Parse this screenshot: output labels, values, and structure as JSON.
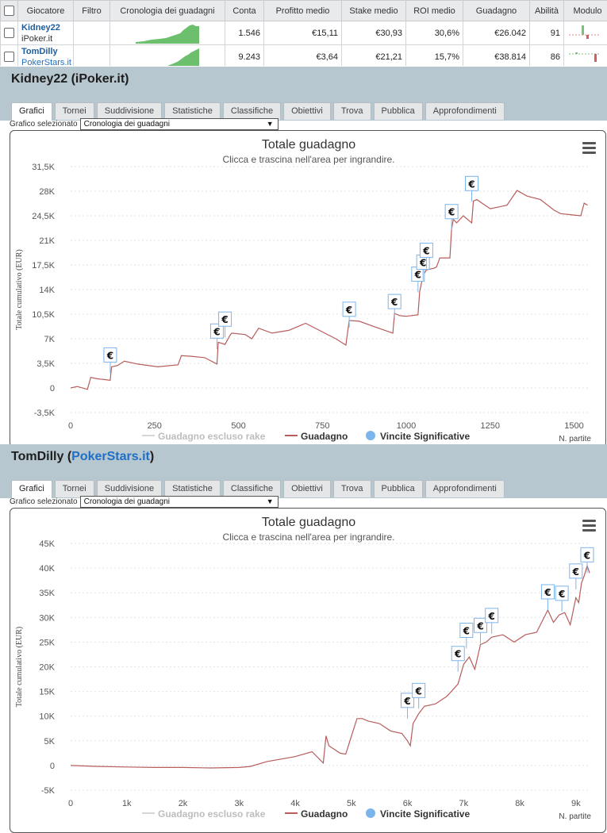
{
  "table": {
    "headers": [
      "",
      "Giocatore",
      "Filtro",
      "Cronologia dei guadagni",
      "Conta",
      "Profitto medio",
      "Stake medio",
      "ROI medio",
      "Guadagno",
      "Abilità",
      "Modulo"
    ],
    "rows": [
      {
        "name": "Kidney22",
        "site": "iPoker.it",
        "site_link": false,
        "conta": "1.546",
        "profitto": "€15,11",
        "stake": "€30,93",
        "roi": "30,6%",
        "guadagno": "€26.042",
        "abilita": "91"
      },
      {
        "name": "TomDilly",
        "site": "PokerStars.it",
        "site_link": true,
        "conta": "9.243",
        "profitto": "€3,64",
        "stake": "€21,21",
        "roi": "15,7%",
        "guadagno": "€38.814",
        "abilita": "86"
      }
    ]
  },
  "tabs": [
    "Grafici",
    "Tornei",
    "Suddivisione",
    "Statistiche",
    "Classifiche",
    "Obiettivi",
    "Trova",
    "Pubblica",
    "Approfondimenti"
  ],
  "selector": {
    "label": "Grafico selezionato",
    "value": "Cronologia dei guadagni"
  },
  "sections": [
    {
      "player": "Kidney22",
      "site": "iPoker.it",
      "site_link": false
    },
    {
      "player": "TomDilly",
      "site": "PokerStars.it",
      "site_link": true
    }
  ],
  "colors": {
    "line": "#b85c5c",
    "marker": "#7cb5ec",
    "fill": "#6cbf6c",
    "header": "#b7c7cf"
  },
  "chart_data": [
    {
      "type": "line",
      "title": "Totale guadagno",
      "subtitle": "Clicca e trascina nell'area per ingrandire.",
      "ylabel": "Totale cumulativo (EUR)",
      "xlabel": "N. partite",
      "ylim": [
        -3500,
        31500
      ],
      "xlim": [
        0,
        1546
      ],
      "yticks": [
        -3500,
        0,
        3500,
        7000,
        10500,
        14000,
        17500,
        21000,
        24500,
        28000,
        31500
      ],
      "ytick_labels": [
        "-3,5K",
        "0",
        "3,5K",
        "7K",
        "10,5K",
        "14K",
        "17,5K",
        "21K",
        "24,5K",
        "28K",
        "31,5K"
      ],
      "xticks": [
        0,
        250,
        500,
        750,
        1000,
        1250,
        1500
      ],
      "xtick_labels": [
        "0",
        "250",
        "500",
        "750",
        "1000",
        "1250",
        "1500"
      ],
      "legend": [
        "Guadagno escluso rake",
        "Guadagno",
        "Vincite Significative"
      ],
      "series": [
        {
          "name": "Guadagno",
          "x": [
            0,
            20,
            50,
            60,
            80,
            100,
            118,
            122,
            140,
            160,
            200,
            260,
            320,
            330,
            360,
            400,
            436,
            440,
            460,
            475,
            480,
            520,
            540,
            560,
            600,
            650,
            700,
            790,
            820,
            830,
            860,
            900,
            960,
            965,
            980,
            1000,
            1035,
            1040,
            1050,
            1060,
            1080,
            1090,
            1100,
            1130,
            1135,
            1140,
            1150,
            1170,
            1195,
            1200,
            1210,
            1250,
            1300,
            1330,
            1360,
            1400,
            1440,
            1460,
            1500,
            1520,
            1530,
            1540
          ],
          "y": [
            0,
            200,
            -200,
            1500,
            1300,
            1200,
            1100,
            3000,
            3200,
            3800,
            3400,
            3000,
            3300,
            4600,
            4500,
            4300,
            3400,
            6500,
            6200,
            7500,
            7800,
            7600,
            7000,
            8500,
            7800,
            8200,
            9200,
            7000,
            6100,
            9600,
            9500,
            8800,
            7800,
            10600,
            10300,
            10200,
            10400,
            13700,
            16000,
            16800,
            17000,
            17200,
            18500,
            18500,
            22600,
            24000,
            23500,
            24500,
            23500,
            26600,
            26800,
            25500,
            26000,
            28100,
            27300,
            26800,
            25300,
            24800,
            24600,
            24500,
            26300,
            26000
          ]
        }
      ],
      "markers": [
        {
          "x": 118,
          "y": 2100
        },
        {
          "x": 436,
          "y": 5500
        },
        {
          "x": 460,
          "y": 7200
        },
        {
          "x": 830,
          "y": 8600
        },
        {
          "x": 965,
          "y": 9700
        },
        {
          "x": 1035,
          "y": 13600
        },
        {
          "x": 1050,
          "y": 15300
        },
        {
          "x": 1060,
          "y": 17000
        },
        {
          "x": 1135,
          "y": 22500
        },
        {
          "x": 1195,
          "y": 26500
        }
      ]
    },
    {
      "type": "line",
      "title": "Totale guadagno",
      "subtitle": "Clicca e trascina nell'area per ingrandire.",
      "ylabel": "Totale cumulativo (EUR)",
      "xlabel": "N. partite",
      "ylim": [
        -5000,
        45000
      ],
      "xlim": [
        0,
        9243
      ],
      "yticks": [
        -5000,
        0,
        5000,
        10000,
        15000,
        20000,
        25000,
        30000,
        35000,
        40000,
        45000
      ],
      "ytick_labels": [
        "-5K",
        "0",
        "5K",
        "10K",
        "15K",
        "20K",
        "25K",
        "30K",
        "35K",
        "40K",
        "45K"
      ],
      "xticks": [
        0,
        1000,
        2000,
        3000,
        4000,
        5000,
        6000,
        7000,
        8000,
        9000
      ],
      "xtick_labels": [
        "0",
        "1k",
        "2k",
        "3k",
        "4k",
        "5k",
        "6k",
        "7k",
        "8k",
        "9k"
      ],
      "legend": [
        "Guadagno escluso rake",
        "Guadagno",
        "Vincite Significative"
      ],
      "series": [
        {
          "name": "Guadagno",
          "x": [
            0,
            500,
            1000,
            1500,
            2000,
            2500,
            3000,
            3200,
            3500,
            4000,
            4300,
            4500,
            4550,
            4600,
            4800,
            4900,
            5100,
            5200,
            5300,
            5500,
            5700,
            5900,
            6000,
            6050,
            6100,
            6200,
            6300,
            6500,
            6700,
            6900,
            7000,
            7100,
            7200,
            7300,
            7400,
            7500,
            7700,
            7900,
            8100,
            8300,
            8500,
            8600,
            8700,
            8800,
            8900,
            9000,
            9050,
            9100,
            9150,
            9200,
            9243
          ],
          "y": [
            0,
            -200,
            -300,
            -400,
            -400,
            -500,
            -400,
            -200,
            800,
            1800,
            2800,
            500,
            6000,
            4000,
            2500,
            2300,
            9500,
            9500,
            9000,
            8500,
            7000,
            6500,
            5000,
            4000,
            8500,
            10500,
            12000,
            12500,
            14000,
            16500,
            20500,
            22000,
            19500,
            24500,
            25000,
            26000,
            26500,
            25000,
            26500,
            27000,
            31500,
            29000,
            30500,
            31000,
            28500,
            34000,
            33000,
            37000,
            38500,
            40500,
            39000
          ]
        }
      ],
      "markers": [
        {
          "x": 6000,
          "y": 9500
        },
        {
          "x": 6200,
          "y": 11500
        },
        {
          "x": 6900,
          "y": 19000
        },
        {
          "x": 7050,
          "y": 23700
        },
        {
          "x": 7300,
          "y": 24700
        },
        {
          "x": 7500,
          "y": 26700
        },
        {
          "x": 8500,
          "y": 31500
        },
        {
          "x": 8750,
          "y": 31200
        },
        {
          "x": 9000,
          "y": 35700
        },
        {
          "x": 9200,
          "y": 39000
        }
      ]
    }
  ]
}
